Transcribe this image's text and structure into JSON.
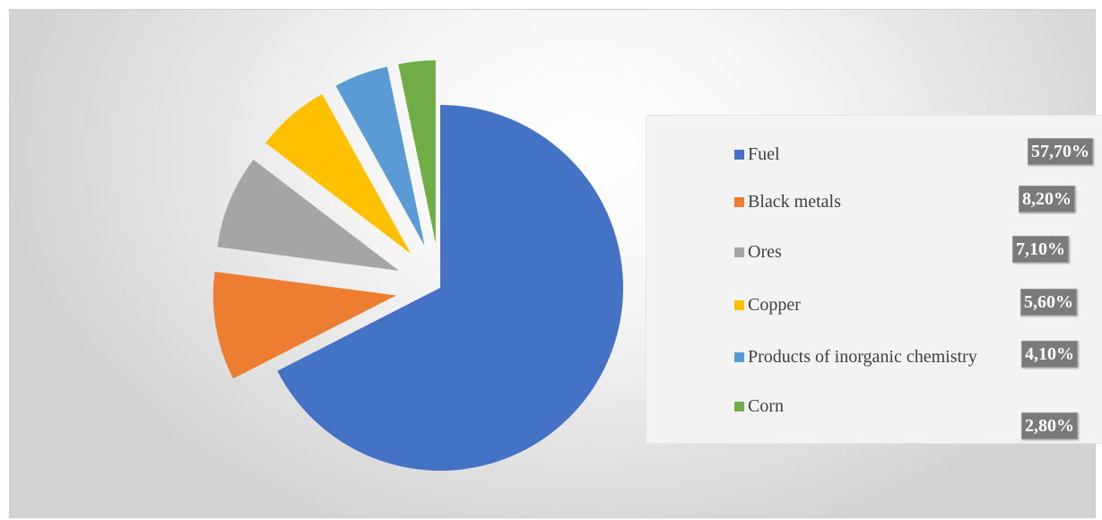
{
  "chart_data": {
    "type": "pie",
    "exploded": true,
    "slices": [
      {
        "label": "Fuel",
        "value": 57.7,
        "value_label": "57,70%",
        "color": "#4472C4"
      },
      {
        "label": "Black metals",
        "value": 8.2,
        "value_label": "8,20%",
        "color": "#ED7D31"
      },
      {
        "label": "Ores",
        "value": 7.1,
        "value_label": "7,10%",
        "color": "#A5A5A5"
      },
      {
        "label": "Copper",
        "value": 5.6,
        "value_label": "5,60%",
        "color": "#FFC000"
      },
      {
        "label": "Products of inorganic chemistry",
        "value": 4.1,
        "value_label": "4,10%",
        "color": "#5B9BD5"
      },
      {
        "label": "Corn",
        "value": 2.8,
        "value_label": "2,80%",
        "color": "#70AD47"
      }
    ],
    "legend_position": "right"
  }
}
